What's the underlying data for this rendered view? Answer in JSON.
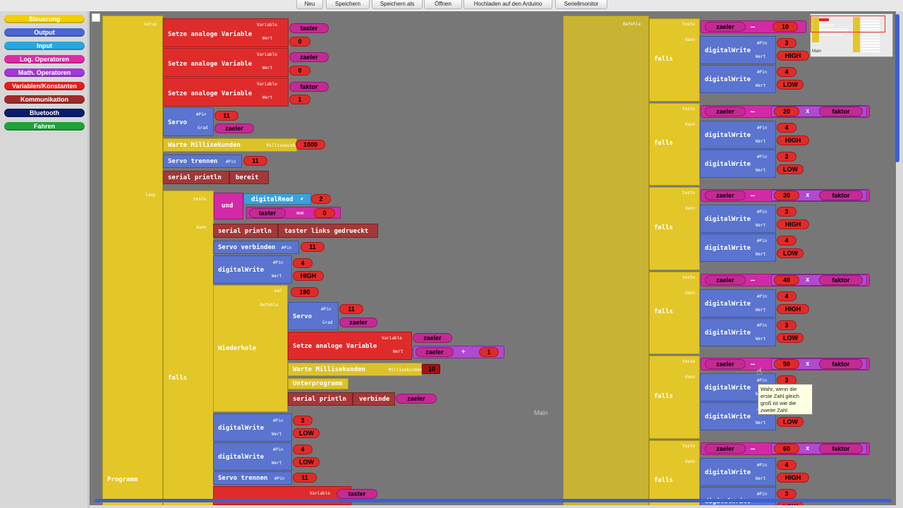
{
  "toolbar": {
    "neu": "Neu",
    "speichern": "Speichern",
    "speichern_als": "Speichern als",
    "oeffnen": "Öffnen",
    "hochladen": "Hochladen auf den Arduino",
    "seriellmonitor": "Seriellmonitor"
  },
  "categories": [
    {
      "label": "Steuerung",
      "color": "#f2cf00"
    },
    {
      "label": "Output",
      "color": "#4a66d2"
    },
    {
      "label": "Input",
      "color": "#2aa6e0"
    },
    {
      "label": "Log. Operatoren",
      "color": "#e02aa6"
    },
    {
      "label": "Math. Operatoren",
      "color": "#a238d8"
    },
    {
      "label": "Variablen/Konstanten",
      "color": "#e51d1d"
    },
    {
      "label": "Kommunikation",
      "color": "#a02a2a"
    },
    {
      "label": "Bluetooth",
      "color": "#0b1c6e"
    },
    {
      "label": "Fahren",
      "color": "#1fa23a"
    }
  ],
  "program": {
    "main_label": "Programm",
    "setup_label": "setup",
    "loop_label": "loop",
    "setze": "Setze analoge Variable",
    "variable": "Variable",
    "wert": "Wert",
    "servo": "Servo",
    "pin": "#Pin",
    "grad": "Grad",
    "warte": "Warte Millisekunden",
    "millisekunden": "Millisekunden",
    "servo_trennen": "Servo trennen",
    "serial_println": "serial println",
    "servo_verbinden": "Servo verbinden",
    "digitalwrite": "digitalWrite",
    "digitalread": "digitalRead",
    "falls": "falls",
    "teste": "teste",
    "dann": "dann",
    "und": "und",
    "wiederhole": "Wiederhole",
    "mal": "mal",
    "befehle": "Befehle",
    "unterprogramm": "Unterprogramm",
    "verbinde": "verbinde",
    "taster": "taster",
    "zaeler": "zaeler",
    "faktor": "faktor",
    "zero": "0",
    "one": "1",
    "eleven": "11",
    "thousand": "1000",
    "bereit": "bereit",
    "two": "2",
    "hash": "#",
    "equal": "==",
    "equal_long": "—",
    "taster_links": "taster links gedrueckt",
    "four": "4",
    "three": "3",
    "high": "HIGH",
    "low": "LOW",
    "oneeighty": "180",
    "ten": "10",
    "plus": "+",
    "times": "x",
    "twenty": "20",
    "thirty": "30",
    "forty": "40",
    "fifty": "50",
    "sixty": "60"
  },
  "tooltip": "Wahr, wenn die erste Zahl gleich groß ist wie die zweite Zahl",
  "workspace_label": "Main",
  "minimap_label": "Main"
}
